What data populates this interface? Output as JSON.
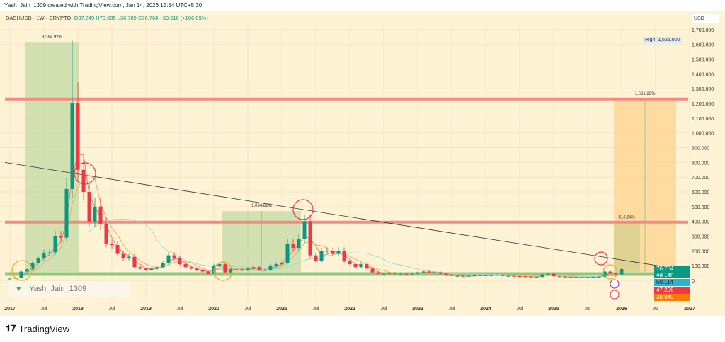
{
  "header": {
    "credit": "Yash_Jain_1309 created with TradingView.com, Jan 14, 2026 15:54 UTC+5:30"
  },
  "legend": {
    "symbol": "DASHUSD · 1W · CRYPTO",
    "open": "O37.249",
    "high": "H79.605",
    "low": "L36.789",
    "close": "C76.764",
    "change": "+39.516 (+106.09%)"
  },
  "price_axis": {
    "currency": "USD",
    "high_label": "High",
    "high_value": "1,625.000",
    "ticks": [
      "1,700.000",
      "1,600.000",
      "1,500.000",
      "1,400.000",
      "1,300.000",
      "1,200.000",
      "1,100.000",
      "1,000.000",
      "900.000",
      "800.000",
      "700.000",
      "600.000",
      "500.000",
      "400.000",
      "300.000",
      "200.000",
      "100.000",
      "0"
    ]
  },
  "time_axis": {
    "ticks": [
      "2017",
      "Jul",
      "2018",
      "Jul",
      "2019",
      "Jul",
      "2020",
      "Jul",
      "2021",
      "Jul",
      "2022",
      "Jul",
      "2023",
      "Jul",
      "2024",
      "Jul",
      "2025",
      "Jul",
      "2026",
      "Jul",
      "2027"
    ]
  },
  "price_labels": {
    "last": "76.764",
    "countdown": "4d 14h",
    "ma1": "50.114",
    "ma2": "47.296",
    "ma3": "38.849"
  },
  "colors": {
    "up": "#089981",
    "down": "#f23645",
    "resistance": "#f28b82",
    "support": "#8cc97a",
    "ma_fast": "#f2735a",
    "ma_mid": "#f5a35c",
    "ma_slow": "#9fd8d0"
  },
  "annotations": {
    "box1": "3,384.92%",
    "box2": "1,094.82%",
    "box3": "516.84%",
    "box4": "1,681.28%",
    "signature": "Yash_Jain_1309"
  },
  "brand": {
    "name": "TradingView"
  },
  "chart_data": {
    "type": "candlestick",
    "title": "DASHUSD · 1W · CRYPTO",
    "ylim": [
      0,
      1700
    ],
    "resistance_levels": [
      1230,
      395
    ],
    "support_level": 43,
    "trendline": [
      [
        "2017-01",
        800
      ],
      [
        "2026-12",
        72
      ]
    ],
    "monthly_close": [
      [
        "2017-01",
        12
      ],
      [
        "2017-02",
        18
      ],
      [
        "2017-03",
        60
      ],
      [
        "2017-04",
        75
      ],
      [
        "2017-05",
        120
      ],
      [
        "2017-06",
        150
      ],
      [
        "2017-07",
        185
      ],
      [
        "2017-08",
        190
      ],
      [
        "2017-09",
        300
      ],
      [
        "2017-10",
        290
      ],
      [
        "2017-11",
        620
      ],
      [
        "2017-12",
        1200
      ],
      [
        "2018-01",
        750
      ],
      [
        "2018-02",
        600
      ],
      [
        "2018-03",
        400
      ],
      [
        "2018-04",
        500
      ],
      [
        "2018-05",
        380
      ],
      [
        "2018-06",
        250
      ],
      [
        "2018-07",
        240
      ],
      [
        "2018-08",
        180
      ],
      [
        "2018-09",
        150
      ],
      [
        "2018-10",
        160
      ],
      [
        "2018-11",
        90
      ],
      [
        "2018-12",
        80
      ],
      [
        "2019-01",
        70
      ],
      [
        "2019-02",
        80
      ],
      [
        "2019-03",
        90
      ],
      [
        "2019-04",
        120
      ],
      [
        "2019-05",
        170
      ],
      [
        "2019-06",
        150
      ],
      [
        "2019-07",
        110
      ],
      [
        "2019-08",
        90
      ],
      [
        "2019-09",
        80
      ],
      [
        "2019-10",
        70
      ],
      [
        "2019-11",
        60
      ],
      [
        "2019-12",
        45
      ],
      [
        "2020-01",
        100
      ],
      [
        "2020-02",
        110
      ],
      [
        "2020-03",
        55
      ],
      [
        "2020-04",
        75
      ],
      [
        "2020-05",
        75
      ],
      [
        "2020-06",
        70
      ],
      [
        "2020-07",
        80
      ],
      [
        "2020-08",
        90
      ],
      [
        "2020-09",
        70
      ],
      [
        "2020-10",
        70
      ],
      [
        "2020-11",
        100
      ],
      [
        "2020-12",
        110
      ],
      [
        "2021-01",
        120
      ],
      [
        "2021-02",
        250
      ],
      [
        "2021-03",
        220
      ],
      [
        "2021-04",
        280
      ],
      [
        "2021-05",
        400
      ],
      [
        "2021-06",
        170
      ],
      [
        "2021-07",
        130
      ],
      [
        "2021-08",
        200
      ],
      [
        "2021-09",
        200
      ],
      [
        "2021-10",
        180
      ],
      [
        "2021-11",
        200
      ],
      [
        "2021-12",
        130
      ],
      [
        "2022-01",
        110
      ],
      [
        "2022-02",
        90
      ],
      [
        "2022-03",
        110
      ],
      [
        "2022-04",
        80
      ],
      [
        "2022-05",
        55
      ],
      [
        "2022-06",
        45
      ],
      [
        "2022-07",
        45
      ],
      [
        "2022-08",
        50
      ],
      [
        "2022-09",
        45
      ],
      [
        "2022-10",
        45
      ],
      [
        "2022-11",
        40
      ],
      [
        "2022-12",
        45
      ],
      [
        "2023-01",
        55
      ],
      [
        "2023-02",
        60
      ],
      [
        "2023-03",
        55
      ],
      [
        "2023-04",
        55
      ],
      [
        "2023-05",
        45
      ],
      [
        "2023-06",
        35
      ],
      [
        "2023-07",
        30
      ],
      [
        "2023-08",
        30
      ],
      [
        "2023-09",
        28
      ],
      [
        "2023-10",
        30
      ],
      [
        "2023-11",
        33
      ],
      [
        "2023-12",
        35
      ],
      [
        "2024-01",
        30
      ],
      [
        "2024-02",
        35
      ],
      [
        "2024-03",
        38
      ],
      [
        "2024-04",
        30
      ],
      [
        "2024-05",
        30
      ],
      [
        "2024-06",
        28
      ],
      [
        "2024-07",
        27
      ],
      [
        "2024-08",
        25
      ],
      [
        "2024-09",
        24
      ],
      [
        "2024-10",
        23
      ],
      [
        "2024-11",
        40
      ],
      [
        "2024-12",
        45
      ],
      [
        "2025-01",
        28
      ],
      [
        "2025-02",
        25
      ],
      [
        "2025-03",
        22
      ],
      [
        "2025-04",
        22
      ],
      [
        "2025-05",
        22
      ],
      [
        "2025-06",
        20
      ],
      [
        "2025-07",
        22
      ],
      [
        "2025-08",
        23
      ],
      [
        "2025-09",
        25
      ],
      [
        "2025-10",
        60
      ],
      [
        "2025-11",
        50
      ],
      [
        "2025-12",
        40
      ],
      [
        "2026-01",
        76.764
      ]
    ]
  }
}
